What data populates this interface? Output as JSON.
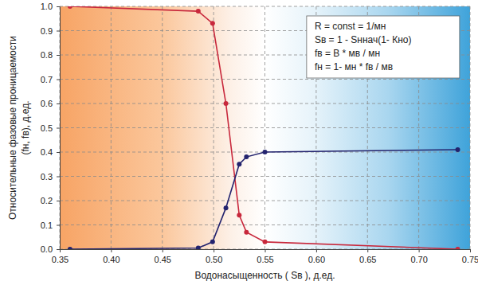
{
  "chart_data": {
    "type": "line",
    "x_label": "Водонасыщенность ( Sв ), д.ед.",
    "y_label": [
      "Относительные фазовые проницаемости",
      "(fн, fв), д.ед."
    ],
    "annotations": [
      "R = const = 1/мн",
      "Sв = 1 - Sннач(1- Кно)",
      "fв = B * мв  / мн",
      "fн = 1- мн * fв / мв"
    ],
    "x": [
      0.36,
      0.485,
      0.499,
      0.512,
      0.525,
      0.532,
      0.55,
      0.738
    ],
    "series": [
      {
        "color": "#c8283c",
        "marker": "circle",
        "line_style": "solid",
        "values": [
          1.0,
          0.98,
          0.93,
          0.6,
          0.14,
          0.07,
          0.03,
          0.0
        ]
      },
      {
        "color": "#23236e",
        "marker": "circle",
        "line_style": "solid",
        "values": [
          0.0,
          0.005,
          0.03,
          0.17,
          0.35,
          0.38,
          0.4,
          0.41
        ]
      }
    ],
    "xlim": [
      0.35,
      0.75
    ],
    "xticks": [
      0.35,
      {
        "value": 0.4,
        "label": "0.40"
      },
      0.45,
      {
        "value": 0.5,
        "label": "0.50"
      },
      0.55,
      {
        "value": 0.6,
        "label": "0.60"
      },
      0.65,
      {
        "value": 0.7,
        "label": "0.70"
      },
      0.75
    ],
    "ylim": [
      0,
      1
    ],
    "yticks": [
      {
        "value": 0,
        "label": "0.0"
      },
      0.1,
      0.2,
      0.3,
      0.4,
      0.5,
      0.6,
      0.7,
      0.8,
      0.9,
      {
        "value": 1,
        "label": "1.0"
      }
    ],
    "grid": true
  }
}
